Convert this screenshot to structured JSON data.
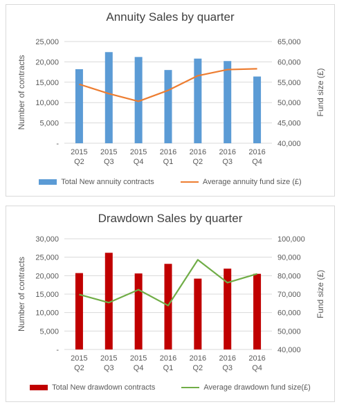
{
  "chart_data": [
    {
      "type": "bar",
      "title": "Annuity Sales by quarter",
      "ylabel": "Number of contracts",
      "y2label": "Fund size (£)",
      "categories": [
        [
          "2015",
          "Q2"
        ],
        [
          "2015",
          "Q3"
        ],
        [
          "2015",
          "Q4"
        ],
        [
          "2016",
          "Q1"
        ],
        [
          "2016",
          "Q2"
        ],
        [
          "2016",
          "Q3"
        ],
        [
          "2016",
          "Q4"
        ]
      ],
      "ylim": [
        0,
        25000
      ],
      "yticks": [
        0,
        5000,
        10000,
        15000,
        20000,
        25000
      ],
      "ytick_labels": [
        "-",
        "5,000",
        "10,000",
        "15,000",
        "20,000",
        "25,000"
      ],
      "y2lim": [
        40000,
        65000
      ],
      "y2ticks": [
        40000,
        45000,
        50000,
        55000,
        60000,
        65000
      ],
      "y2tick_labels": [
        "40,000",
        "45,000",
        "50,000",
        "55,000",
        "60,000",
        "65,000"
      ],
      "grid": true,
      "legend_position": "bottom",
      "series": [
        {
          "name": "Total New annuity contracts",
          "kind": "bar",
          "axis": "left",
          "color": "#5b9bd5",
          "values": [
            18200,
            22400,
            21200,
            18000,
            20800,
            20200,
            16400
          ]
        },
        {
          "name": "Average annuity fund size (£)",
          "kind": "line",
          "axis": "right",
          "color": "#ed7d31",
          "values": [
            54500,
            52200,
            50300,
            53000,
            56600,
            58100,
            58300
          ]
        }
      ]
    },
    {
      "type": "bar",
      "title": "Drawdown Sales by quarter",
      "ylabel": "Number of contracts",
      "y2label": "Fund size (£)",
      "categories": [
        [
          "2015",
          "Q2"
        ],
        [
          "2015",
          "Q3"
        ],
        [
          "2015",
          "Q4"
        ],
        [
          "2016",
          "Q1"
        ],
        [
          "2016",
          "Q2"
        ],
        [
          "2016",
          "Q3"
        ],
        [
          "2016",
          "Q4"
        ]
      ],
      "ylim": [
        0,
        30000
      ],
      "yticks": [
        0,
        5000,
        10000,
        15000,
        20000,
        25000,
        30000
      ],
      "ytick_labels": [
        "-",
        "5,000",
        "10,000",
        "15,000",
        "20,000",
        "25,000",
        "30,000"
      ],
      "y2lim": [
        40000,
        100000
      ],
      "y2ticks": [
        40000,
        50000,
        60000,
        70000,
        80000,
        90000,
        100000
      ],
      "y2tick_labels": [
        "40,000",
        "50,000",
        "60,000",
        "70,000",
        "80,000",
        "90,000",
        "100,000"
      ],
      "grid": true,
      "legend_position": "bottom",
      "series": [
        {
          "name": "Total New drawdown contracts",
          "kind": "bar",
          "axis": "left",
          "color": "#c00000",
          "values": [
            20700,
            26200,
            20600,
            23200,
            19200,
            21900,
            20500
          ]
        },
        {
          "name": "Average drawdown fund size(£)",
          "kind": "line",
          "axis": "right",
          "color": "#70ad47",
          "values": [
            69800,
            65400,
            72400,
            63800,
            88600,
            76200,
            81000
          ]
        }
      ]
    }
  ]
}
